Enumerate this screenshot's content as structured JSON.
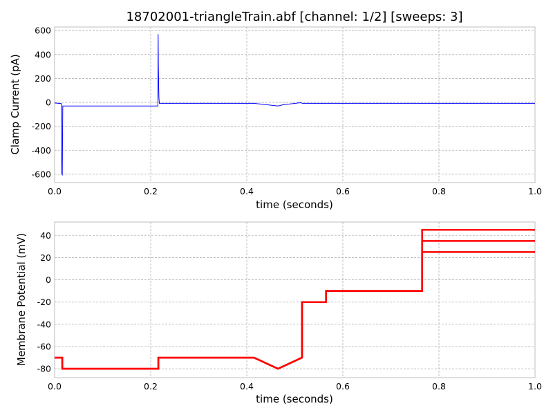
{
  "figure": {
    "title": "18702001-triangleTrain.abf [channel: 1/2] [sweeps: 3]"
  },
  "chart_data": [
    {
      "type": "line",
      "title": "18702001-triangleTrain.abf [channel: 1/2] [sweeps: 3]",
      "xlabel": "time (seconds)",
      "ylabel": "Clamp Current (pA)",
      "xlim": [
        0.0,
        1.0
      ],
      "ylim": [
        -670,
        630
      ],
      "xticks": [
        "0.0",
        "0.2",
        "0.4",
        "0.6",
        "0.8",
        "1.0"
      ],
      "yticks": [
        "600",
        "400",
        "200",
        "0",
        "-200",
        "-400",
        "-600"
      ],
      "grid": true,
      "color": "#0000ff",
      "series": [
        {
          "x": [
            0.0,
            0.014,
            0.015,
            0.016,
            0.017,
            0.02,
            0.1,
            0.215,
            0.2155,
            0.216,
            0.217,
            0.218,
            0.22,
            0.3,
            0.415,
            0.465,
            0.475,
            0.512,
            0.516,
            0.6,
            0.8,
            1.0
          ],
          "y": [
            -5,
            -10,
            -600,
            -605,
            -30,
            -30,
            -30,
            -30,
            570,
            300,
            50,
            -8,
            -8,
            -8,
            -8,
            -30,
            -20,
            -3,
            -8,
            -8,
            -8,
            -8
          ]
        }
      ]
    },
    {
      "type": "line",
      "xlabel": "time (seconds)",
      "ylabel": "Membrane Potential (mV)",
      "xlim": [
        0.0,
        1.0
      ],
      "ylim": [
        -88,
        52
      ],
      "xticks": [
        "0.0",
        "0.2",
        "0.4",
        "0.6",
        "0.8",
        "1.0"
      ],
      "yticks": [
        "40",
        "20",
        "0",
        "-20",
        "-40",
        "-60",
        "-80"
      ],
      "grid": true,
      "color": "#ff0000",
      "series": [
        {
          "x": [
            0.0,
            0.016,
            0.016,
            0.216,
            0.216,
            0.415,
            0.465,
            0.515,
            0.515,
            0.565,
            0.565,
            0.765,
            0.765,
            1.0
          ],
          "y": [
            -70,
            -70,
            -80,
            -80,
            -70,
            -70,
            -80,
            -70,
            -20,
            -20,
            -10,
            -10,
            25,
            25
          ]
        },
        {
          "x": [
            0.0,
            0.016,
            0.016,
            0.216,
            0.216,
            0.415,
            0.465,
            0.515,
            0.515,
            0.565,
            0.565,
            0.765,
            0.765,
            1.0
          ],
          "y": [
            -70,
            -70,
            -80,
            -80,
            -70,
            -70,
            -80,
            -70,
            -20,
            -20,
            -10,
            -10,
            35,
            35
          ]
        },
        {
          "x": [
            0.0,
            0.016,
            0.016,
            0.216,
            0.216,
            0.415,
            0.465,
            0.515,
            0.515,
            0.565,
            0.565,
            0.765,
            0.765,
            1.0
          ],
          "y": [
            -70,
            -70,
            -80,
            -80,
            -70,
            -70,
            -80,
            -70,
            -20,
            -20,
            -10,
            -10,
            45,
            45
          ]
        }
      ]
    }
  ]
}
